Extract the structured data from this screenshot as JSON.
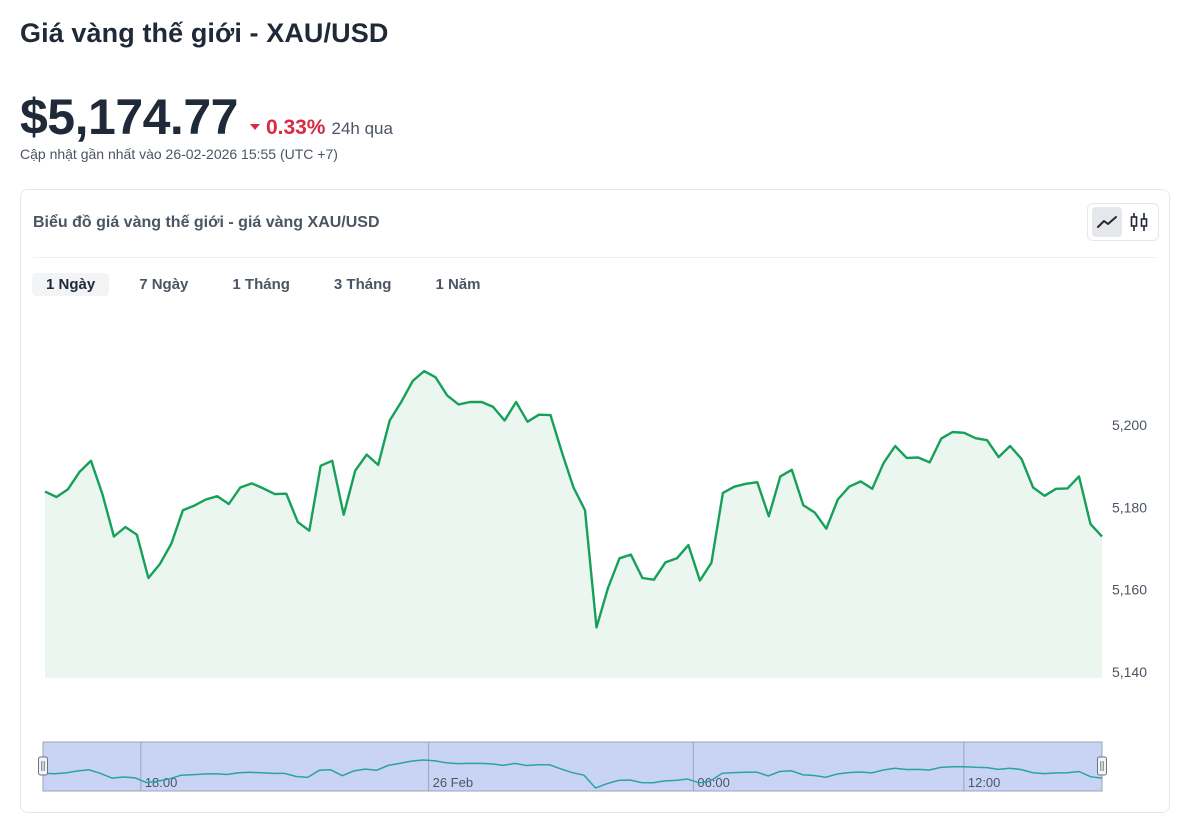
{
  "header": {
    "title": "Giá vàng thế giới - XAU/USD",
    "price": "$5,174.77",
    "change_pct": "0.33%",
    "change_period": "24h qua",
    "updated": "Cập nhật gần nhất vào 26-02-2026 15:55 (UTC +7)"
  },
  "colors": {
    "negative": "#d62b43",
    "line": "#16a05a",
    "area": "#eaf6ef",
    "navigator_fill": "#c9d4f5",
    "navigator_line": "#2ba3a0"
  },
  "icons": {
    "line_chart": "line-chart-icon",
    "candlestick": "candlestick-icon"
  },
  "card": {
    "title": "Biểu đồ giá vàng thế giới - giá vàng XAU/USD",
    "chart_type_selected": "line"
  },
  "ranges": [
    {
      "label": "1 Ngày",
      "active": true
    },
    {
      "label": "7 Ngày",
      "active": false
    },
    {
      "label": "1 Tháng",
      "active": false
    },
    {
      "label": "3 Tháng",
      "active": false
    },
    {
      "label": "1 Năm",
      "active": false
    }
  ],
  "chart_data": {
    "type": "area",
    "title": "",
    "xlabel": "",
    "ylabel": "",
    "ylim": [
      5138.5,
      5222
    ],
    "y_ticks": [
      5140,
      5160,
      5180,
      5200
    ],
    "y_tick_labels": [
      "5,140",
      "5,160",
      "5,180",
      "5,200"
    ],
    "navigator_ticks": [
      {
        "label": "18:00",
        "index": 8.5
      },
      {
        "label": "26 Feb",
        "index": 33.5
      },
      {
        "label": "06:00",
        "index": 56.5
      },
      {
        "label": "12:00",
        "index": 80
      }
    ],
    "grid": false,
    "legend": "none",
    "series": [
      {
        "values": [
          5183.8,
          5182.5,
          5184.4,
          5188.6,
          5191.3,
          5183.2,
          5172.9,
          5175.2,
          5173.3,
          5162.8,
          5166.2,
          5171.2,
          5179.3,
          5180.4,
          5181.9,
          5182.7,
          5180.8,
          5184.8,
          5185.8,
          5184.6,
          5183.2,
          5183.3,
          5176.4,
          5174.3,
          5190.1,
          5191.3,
          5178.2,
          5188.9,
          5192.8,
          5190.3,
          5201.1,
          5205.6,
          5210.7,
          5213.1,
          5211.6,
          5207.2,
          5205.0,
          5205.6,
          5205.6,
          5204.4,
          5201.1,
          5205.6,
          5200.8,
          5202.5,
          5202.4,
          5193.3,
          5184.8,
          5179.3,
          5150.8,
          5160.4,
          5167.6,
          5168.5,
          5162.8,
          5162.4,
          5166.6,
          5167.6,
          5170.8,
          5162.2,
          5166.5,
          5183.5,
          5185.0,
          5185.7,
          5186.1,
          5177.8,
          5187.5,
          5189.1,
          5180.5,
          5178.7,
          5174.8,
          5181.9,
          5185.0,
          5186.3,
          5184.5,
          5190.8,
          5194.9,
          5192.0,
          5192.1,
          5190.9,
          5196.7,
          5198.3,
          5198.1,
          5196.8,
          5196.3,
          5192.2,
          5194.9,
          5191.7,
          5184.8,
          5182.8,
          5184.5,
          5184.6,
          5187.5,
          5175.9,
          5172.9
        ]
      }
    ]
  }
}
